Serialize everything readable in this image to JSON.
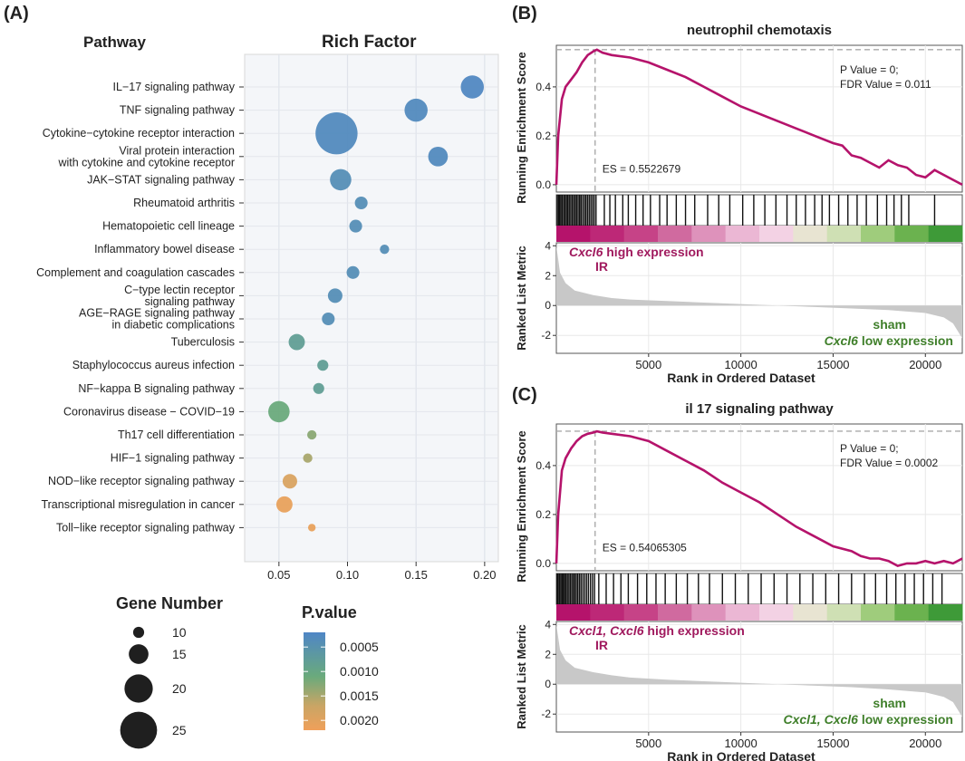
{
  "panels": {
    "a": "(A)",
    "b": "(B)",
    "c": "(C)"
  },
  "panel_a": {
    "pathway_header": "Pathway",
    "richfactor_header": "Rich Factor",
    "legend_size_title": "Gene Number",
    "legend_color_title": "P.value"
  },
  "colors": {
    "pval_low": "#4f86c6",
    "pval_mid": "#6aaa7c",
    "pval_high": "#f0a05a",
    "gsea_line": "#b5136b",
    "ir_text": "#a01a5e",
    "sham_text": "#3f7f2a"
  },
  "chart_data": [
    {
      "type": "scatter",
      "subtype": "bubble",
      "title": "Rich Factor",
      "xlabel": "",
      "ylabel": "Pathway",
      "xlim": [
        0.025,
        0.21
      ],
      "xticks": [
        0.05,
        0.1,
        0.15,
        0.2
      ],
      "xtick_labels": [
        "0.05",
        "0.10",
        "0.15",
        "0.20"
      ],
      "categories": [
        "IL−17 signaling pathway",
        "TNF signaling pathway",
        "Cytokine−cytokine receptor interaction",
        "Viral protein interaction\nwith cytokine and cytokine receptor",
        "JAK−STAT signaling pathway",
        "Rheumatoid arthritis",
        "Hematopoietic cell lineage",
        "Inflammatory bowel disease",
        "Complement and coagulation cascades",
        "C−type lectin receptor\nsignaling pathway",
        "AGE−RAGE signaling pathway\nin diabetic complications",
        "Tuberculosis",
        "Staphylococcus aureus infection",
        "NF−kappa B signaling pathway",
        "Coronavirus disease − COVID−19",
        "Th17 cell differentiation",
        "HIF−1 signaling pathway",
        "NOD−like receptor signaling pathway",
        "Transcriptional misregulation in cancer",
        "Toll−like receptor signaling pathway"
      ],
      "x": [
        0.191,
        0.15,
        0.092,
        0.166,
        0.095,
        0.11,
        0.106,
        0.127,
        0.104,
        0.091,
        0.086,
        0.063,
        0.082,
        0.079,
        0.05,
        0.074,
        0.071,
        0.058,
        0.054,
        0.074
      ],
      "gene_number": [
        17,
        17,
        28,
        15,
        16,
        11,
        11,
        9,
        11,
        12,
        11,
        13,
        10,
        10,
        16,
        9,
        9,
        12,
        13,
        8
      ],
      "p_value": [
        0.00025,
        0.0003,
        0.0003,
        0.0003,
        0.0004,
        0.0004,
        0.0004,
        0.0004,
        0.0004,
        0.0004,
        0.0004,
        0.0008,
        0.0008,
        0.0008,
        0.0011,
        0.0013,
        0.0015,
        0.0019,
        0.0021,
        0.0021
      ],
      "size_legend": {
        "title": "Gene Number",
        "values": [
          10,
          15,
          20,
          25
        ]
      },
      "color_legend": {
        "title": "P.value",
        "ticks": [
          0.0005,
          0.001,
          0.0015,
          0.002
        ],
        "tick_labels": [
          "0.0005",
          "0.0010",
          "0.0015",
          "0.0020"
        ],
        "range": [
          0.0002,
          0.0022
        ]
      }
    },
    {
      "type": "line",
      "title": "neutrophil chemotaxis",
      "ylabel": "Running Enrichment Score",
      "ylabel2": "Ranked List Metric",
      "xlabel": "Rank in Ordered Dataset",
      "xlim": [
        0,
        22000
      ],
      "xticks": [
        5000,
        10000,
        15000,
        20000
      ],
      "es_ylim": [
        -0.03,
        0.57
      ],
      "es_yticks": [
        0.0,
        0.2,
        0.4
      ],
      "es_ytick_labels": [
        "0.0",
        "0.2",
        "0.4"
      ],
      "metric_ylim": [
        -3.2,
        4.2
      ],
      "metric_yticks": [
        4,
        2,
        0,
        -2
      ],
      "es_curve": {
        "x": [
          0,
          100,
          300,
          500,
          800,
          1100,
          1400,
          1700,
          2000,
          2200,
          2500,
          3000,
          4000,
          5000,
          6000,
          7000,
          8000,
          9000,
          10000,
          11000,
          12000,
          13000,
          14000,
          15000,
          15500,
          16000,
          16500,
          17000,
          17500,
          18000,
          18500,
          19000,
          19500,
          20000,
          20500,
          21000,
          21500,
          22000
        ],
        "y": [
          0.0,
          0.2,
          0.35,
          0.4,
          0.43,
          0.46,
          0.5,
          0.53,
          0.545,
          0.552,
          0.54,
          0.53,
          0.52,
          0.5,
          0.47,
          0.44,
          0.4,
          0.36,
          0.32,
          0.29,
          0.26,
          0.23,
          0.2,
          0.17,
          0.16,
          0.12,
          0.11,
          0.09,
          0.07,
          0.1,
          0.08,
          0.07,
          0.04,
          0.03,
          0.06,
          0.04,
          0.02,
          0.0
        ]
      },
      "peak_rank": 2100,
      "es_max": 0.5522679,
      "es_label": "ES = 0.5522679",
      "p_value_label": "P Value = 0;",
      "fdr_label": "FDR Value = 0.011",
      "hit_ranks": [
        50,
        120,
        180,
        250,
        320,
        400,
        470,
        550,
        620,
        700,
        780,
        860,
        940,
        1020,
        1100,
        1180,
        1260,
        1340,
        1430,
        1520,
        1600,
        1690,
        1780,
        1870,
        1960,
        2050,
        2150,
        2600,
        2900,
        3200,
        3600,
        3900,
        4300,
        4700,
        5100,
        5600,
        6000,
        6500,
        7000,
        7500,
        8200,
        8800,
        9400,
        10100,
        10700,
        11300,
        11900,
        12500,
        13000,
        13500,
        14000,
        14400,
        14800,
        15300,
        15800,
        16300,
        16800,
        17400,
        17900,
        18300,
        18700,
        19100,
        20500
      ],
      "metric_profile": {
        "x": [
          0,
          200,
          500,
          1000,
          2000,
          3000,
          4000,
          6000,
          8000,
          10000,
          12000,
          14000,
          16000,
          18000,
          20000,
          21000,
          21500,
          22000
        ],
        "y": [
          4.0,
          2.2,
          1.5,
          1.0,
          0.7,
          0.5,
          0.4,
          0.3,
          0.2,
          0.1,
          0.0,
          -0.1,
          -0.2,
          -0.3,
          -0.5,
          -0.8,
          -1.2,
          -2.2
        ]
      },
      "annotation_high": "high expression",
      "annotation_high_gene": "Cxcl6",
      "annotation_ir": "IR",
      "annotation_sham": "sham",
      "annotation_low": "low expression",
      "annotation_low_gene": "Cxcl6"
    },
    {
      "type": "line",
      "title": "il 17 signaling pathway",
      "ylabel": "Running Enrichment Score",
      "ylabel2": "Ranked List Metric",
      "xlabel": "Rank in Ordered Dataset",
      "xlim": [
        0,
        22000
      ],
      "xticks": [
        5000,
        10000,
        15000,
        20000
      ],
      "es_ylim": [
        -0.03,
        0.57
      ],
      "es_yticks": [
        0.0,
        0.2,
        0.4
      ],
      "es_ytick_labels": [
        "0.0",
        "0.2",
        "0.4"
      ],
      "metric_ylim": [
        -3.2,
        4.2
      ],
      "metric_yticks": [
        4,
        2,
        0,
        -2
      ],
      "es_curve": {
        "x": [
          0,
          100,
          300,
          500,
          800,
          1100,
          1400,
          1700,
          2000,
          2200,
          2500,
          3000,
          4000,
          5000,
          6000,
          7000,
          8000,
          9000,
          10000,
          11000,
          12000,
          13000,
          14000,
          15000,
          16000,
          16500,
          17000,
          17500,
          18000,
          18500,
          19000,
          19500,
          20000,
          20500,
          21000,
          21500,
          22000
        ],
        "y": [
          0.0,
          0.2,
          0.38,
          0.43,
          0.47,
          0.5,
          0.52,
          0.53,
          0.535,
          0.54,
          0.535,
          0.53,
          0.52,
          0.5,
          0.46,
          0.42,
          0.38,
          0.33,
          0.29,
          0.25,
          0.2,
          0.15,
          0.11,
          0.07,
          0.05,
          0.03,
          0.02,
          0.02,
          0.01,
          -0.01,
          0.0,
          0.0,
          0.01,
          0.0,
          0.01,
          0.0,
          0.02
        ]
      },
      "peak_rank": 2100,
      "es_max": 0.54065305,
      "es_label": "ES = 0.54065305",
      "p_value_label": "P Value = 0;",
      "fdr_label": "FDR Value = 0.0002",
      "hit_ranks": [
        40,
        100,
        170,
        240,
        310,
        380,
        450,
        520,
        600,
        680,
        760,
        840,
        920,
        1000,
        1080,
        1160,
        1250,
        1340,
        1440,
        1540,
        1640,
        1740,
        1850,
        1960,
        2070,
        2300,
        2700,
        3100,
        3500,
        3900,
        4400,
        4900,
        5400,
        5900,
        6500,
        7100,
        7700,
        8300,
        9000,
        9700,
        10400,
        11100,
        11800,
        12500,
        13200,
        13900,
        14600,
        15300,
        16000,
        16700,
        17300,
        17900,
        18400,
        18900,
        19400,
        19900,
        20400,
        20900
      ],
      "metric_profile": {
        "x": [
          0,
          200,
          500,
          1000,
          2000,
          3000,
          4000,
          6000,
          8000,
          10000,
          12000,
          14000,
          16000,
          18000,
          20000,
          21000,
          21500,
          22000
        ],
        "y": [
          4.0,
          2.3,
          1.6,
          1.1,
          0.8,
          0.6,
          0.45,
          0.3,
          0.2,
          0.1,
          0.0,
          -0.1,
          -0.2,
          -0.35,
          -0.55,
          -0.85,
          -1.2,
          -2.2
        ]
      },
      "annotation_high": "high expression",
      "annotation_high_gene": "Cxcl1, Cxcl6",
      "annotation_ir": "IR",
      "annotation_sham": "sham",
      "annotation_low": "low expression",
      "annotation_low_gene": "Cxcl1, Cxcl6"
    }
  ]
}
